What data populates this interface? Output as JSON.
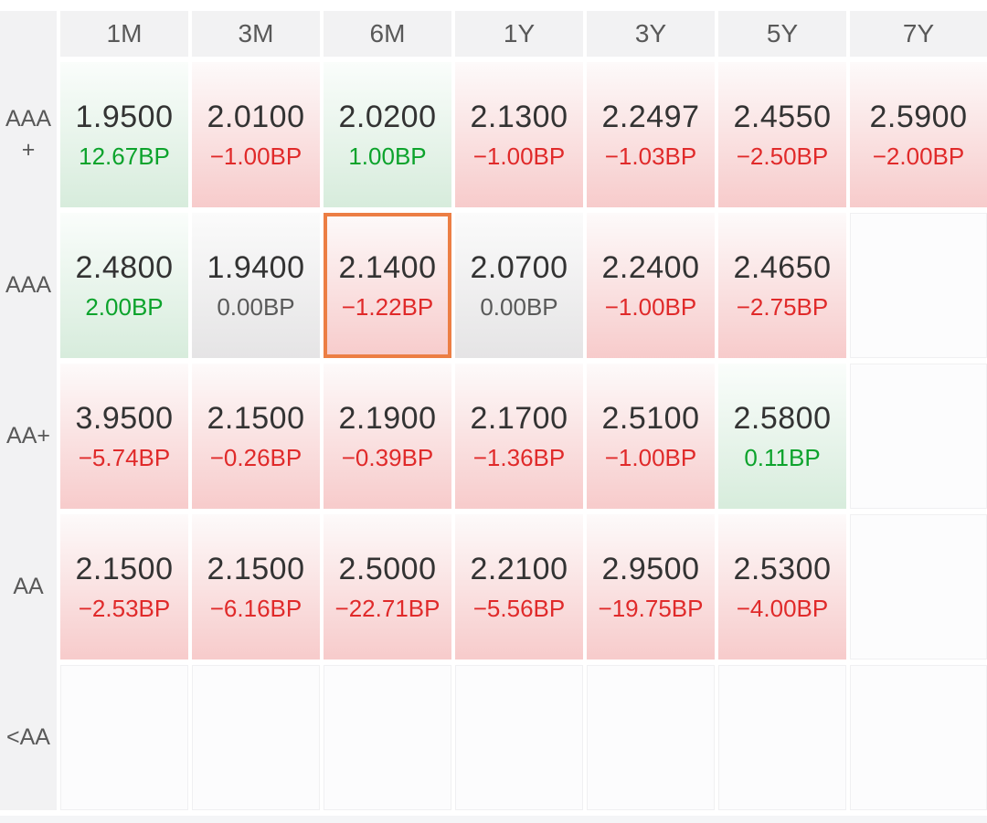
{
  "columns": [
    "1M",
    "3M",
    "6M",
    "1Y",
    "3Y",
    "5Y",
    "7Y"
  ],
  "colors": {
    "up_green": "#0ca32c",
    "down_red": "#e02a2a",
    "zero_gray": "#595959",
    "selection_orange": "#ec7e44",
    "header_bg": "#f2f2f3",
    "rate_text": "#333333"
  },
  "grid": {
    "rows": [
      {
        "label": "AAA+",
        "cells": [
          {
            "rate": "1.9500",
            "change": "12.67BP",
            "dir": "up"
          },
          {
            "rate": "2.0100",
            "change": "−1.00BP",
            "dir": "down"
          },
          {
            "rate": "2.0200",
            "change": "1.00BP",
            "dir": "up"
          },
          {
            "rate": "2.1300",
            "change": "−1.00BP",
            "dir": "down"
          },
          {
            "rate": "2.2497",
            "change": "−1.03BP",
            "dir": "down"
          },
          {
            "rate": "2.4550",
            "change": "−2.50BP",
            "dir": "down"
          },
          {
            "rate": "2.5900",
            "change": "−2.00BP",
            "dir": "down"
          }
        ]
      },
      {
        "label": "AAA",
        "cells": [
          {
            "rate": "2.4800",
            "change": "2.00BP",
            "dir": "up"
          },
          {
            "rate": "1.9400",
            "change": "0.00BP",
            "dir": "zero"
          },
          {
            "rate": "2.1400",
            "change": "−1.22BP",
            "dir": "down",
            "selected": true
          },
          {
            "rate": "2.0700",
            "change": "0.00BP",
            "dir": "zero"
          },
          {
            "rate": "2.2400",
            "change": "−1.00BP",
            "dir": "down"
          },
          {
            "rate": "2.4650",
            "change": "−2.75BP",
            "dir": "down"
          },
          {
            "empty": true
          }
        ]
      },
      {
        "label": "AA+",
        "cells": [
          {
            "rate": "3.9500",
            "change": "−5.74BP",
            "dir": "down"
          },
          {
            "rate": "2.1500",
            "change": "−0.26BP",
            "dir": "down"
          },
          {
            "rate": "2.1900",
            "change": "−0.39BP",
            "dir": "down"
          },
          {
            "rate": "2.1700",
            "change": "−1.36BP",
            "dir": "down"
          },
          {
            "rate": "2.5100",
            "change": "−1.00BP",
            "dir": "down"
          },
          {
            "rate": "2.5800",
            "change": "0.11BP",
            "dir": "up"
          },
          {
            "empty": true
          }
        ]
      },
      {
        "label": "AA",
        "cells": [
          {
            "rate": "2.1500",
            "change": "−2.53BP",
            "dir": "down"
          },
          {
            "rate": "2.1500",
            "change": "−6.16BP",
            "dir": "down"
          },
          {
            "rate": "2.5000",
            "change": "−22.71BP",
            "dir": "down"
          },
          {
            "rate": "2.2100",
            "change": "−5.56BP",
            "dir": "down"
          },
          {
            "rate": "2.9500",
            "change": "−19.75BP",
            "dir": "down"
          },
          {
            "rate": "2.5300",
            "change": "−4.00BP",
            "dir": "down"
          },
          {
            "empty": true
          }
        ]
      },
      {
        "label": "<AA",
        "cells": [
          {
            "empty": true
          },
          {
            "empty": true
          },
          {
            "empty": true
          },
          {
            "empty": true
          },
          {
            "empty": true
          },
          {
            "empty": true
          },
          {
            "empty": true
          }
        ]
      }
    ]
  }
}
